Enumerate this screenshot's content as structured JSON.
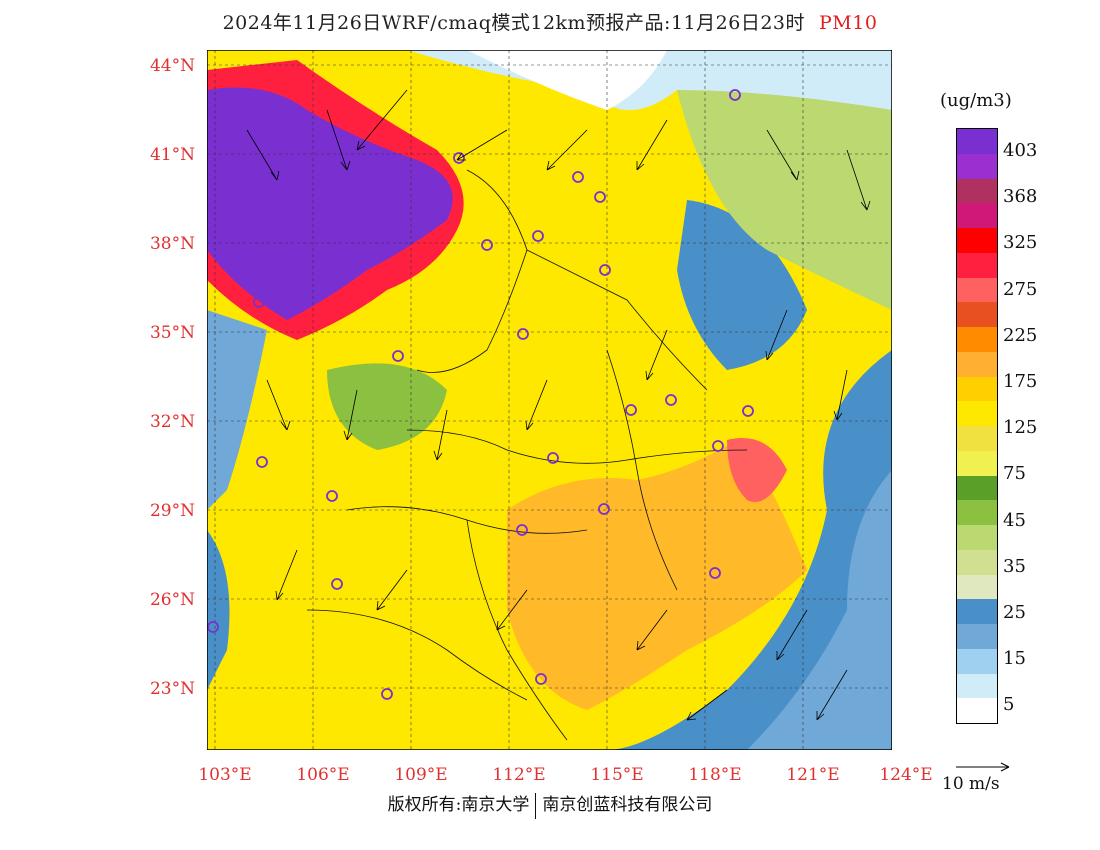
{
  "title": {
    "main": "2024年11月26日WRF/cmaq模式12km预报产品:11月26日23时",
    "pollutant": "PM10"
  },
  "lat_labels": [
    "44°N",
    "41°N",
    "38°N",
    "35°N",
    "32°N",
    "29°N",
    "26°N",
    "23°N"
  ],
  "lon_labels": [
    "103°E",
    "106°E",
    "109°E",
    "112°E",
    "115°E",
    "118°E",
    "121°E",
    "124°E"
  ],
  "colorbar": {
    "units": "(ug/m3)",
    "labels": [
      "403",
      "368",
      "325",
      "275",
      "225",
      "175",
      "125",
      "75",
      "45",
      "35",
      "25",
      "15",
      "5"
    ],
    "colors": [
      "#7a2fd0",
      "#9b30d0",
      "#b03060",
      "#d01878",
      "#ff0000",
      "#ff2040",
      "#ff6060",
      "#e85020",
      "#ff8c00",
      "#ffb030",
      "#ffd000",
      "#ffe800",
      "#f0e040",
      "#f0f050",
      "#5aa028",
      "#8cc040",
      "#bcd870",
      "#d0e090",
      "#e0e8c0",
      "#4a90c8",
      "#70a8d8",
      "#a0d0f0",
      "#d0ecf8",
      "#ffffff"
    ]
  },
  "wind_ref": "10 m/s",
  "copyright": {
    "left": "版权所有:南京大学",
    "right": "南京创蓝科技有限公司"
  },
  "colors": {
    "labels": "#e03030"
  }
}
